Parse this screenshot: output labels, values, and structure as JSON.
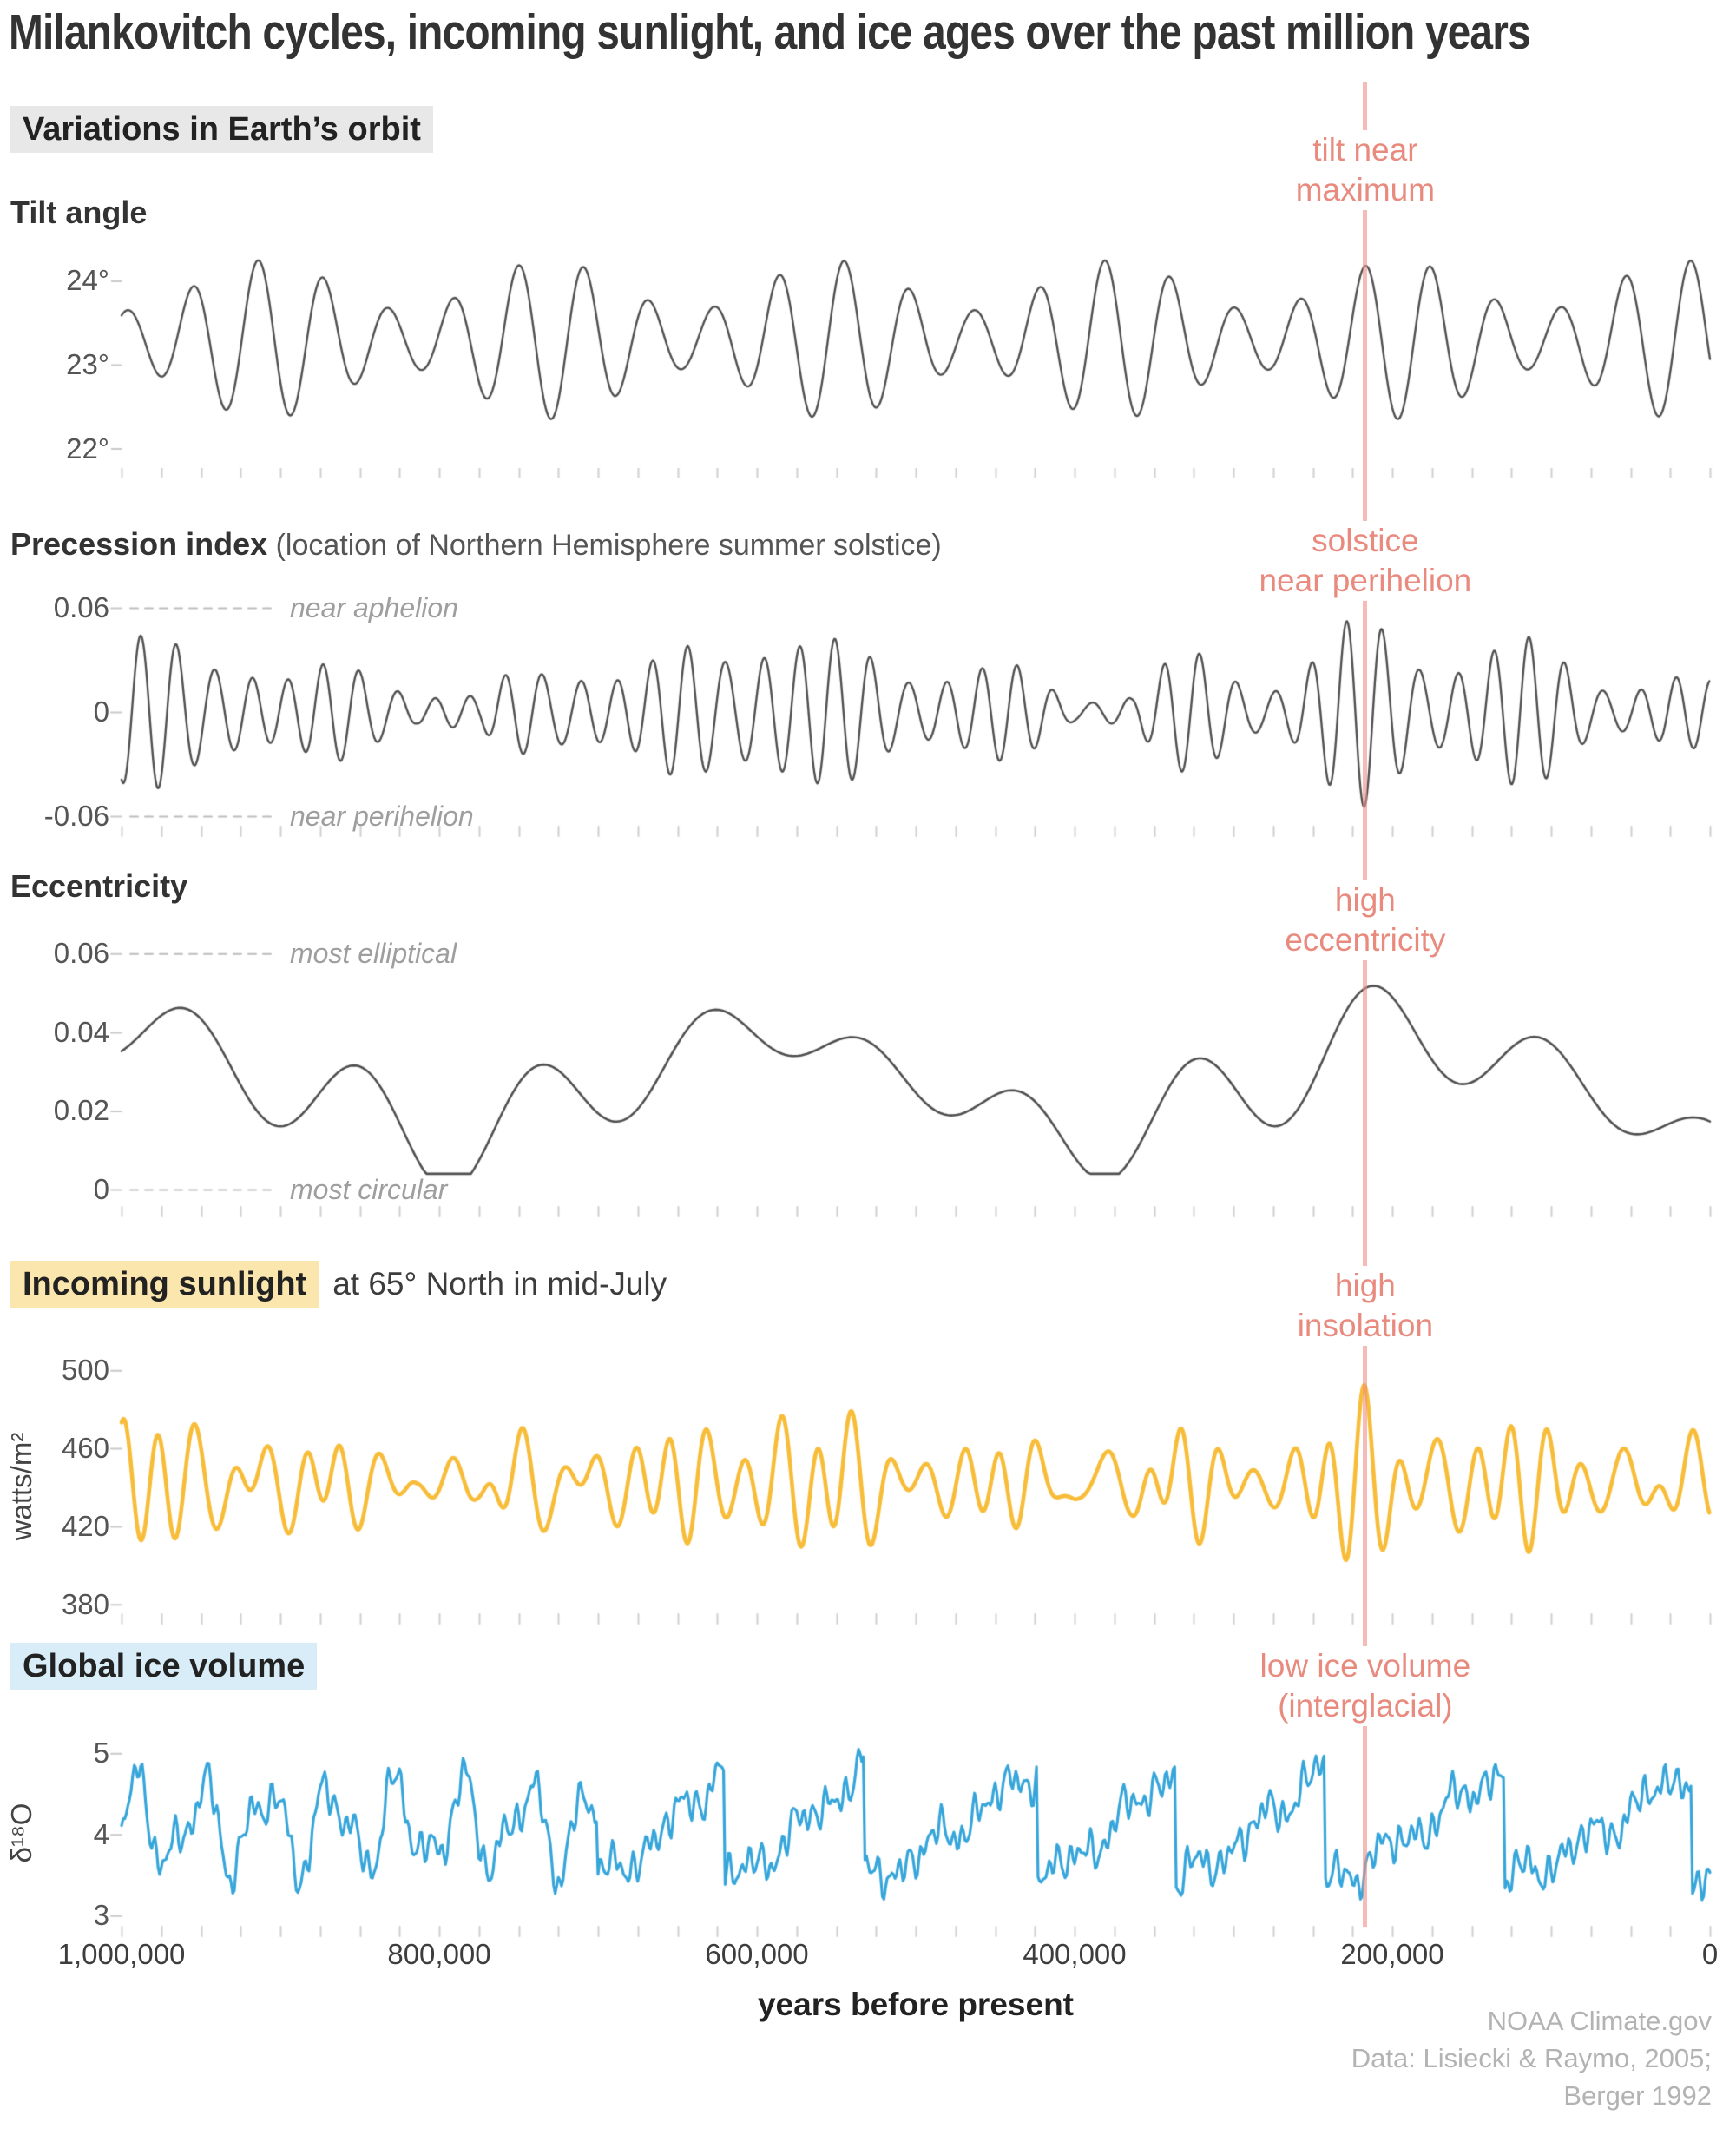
{
  "title": "Milankovitch cycles, incoming sunlight, and ice ages over the past million years",
  "sections": {
    "orbit": {
      "header": "Variations in Earth’s orbit",
      "bg": "#e8e8e8"
    },
    "sunlight": {
      "header": "Incoming sunlight",
      "suffix": "at 65° North in mid-July",
      "bg": "#fbe6ad"
    },
    "ice": {
      "header": "Global ice volume",
      "bg": "#d8edf7"
    }
  },
  "annotation_line": {
    "time_years_bp": 217000,
    "line_color": "#ef8e83",
    "text_color": "#e98a7f",
    "labels": [
      {
        "panel": "tilt",
        "lines": [
          "tilt near",
          "maximum"
        ]
      },
      {
        "panel": "precession",
        "lines": [
          "solstice",
          "near perihelion"
        ]
      },
      {
        "panel": "eccentricity",
        "lines": [
          "high",
          "eccentricity"
        ]
      },
      {
        "panel": "insolation",
        "lines": [
          "high",
          "insolation"
        ]
      },
      {
        "panel": "ice",
        "lines": [
          "low ice volume",
          "(interglacial)"
        ]
      }
    ]
  },
  "xaxis": {
    "title": "years before present",
    "minor_tick_step_years": 25000,
    "ticks": [
      {
        "t": 1000000,
        "label": "1,000,000"
      },
      {
        "t": 800000,
        "label": "800,000"
      },
      {
        "t": 600000,
        "label": "600,000"
      },
      {
        "t": 400000,
        "label": "400,000"
      },
      {
        "t": 200000,
        "label": "200,000"
      },
      {
        "t": 0,
        "label": "0"
      }
    ]
  },
  "source_lines": [
    "NOAA Climate.gov",
    "Data: Lisiecki & Raymo, 2005;",
    "Berger 1992"
  ],
  "chart_data": [
    {
      "id": "tilt",
      "type": "line",
      "title": "Tilt angle",
      "color": "#4f4f4f",
      "x_years_bp": [
        1000000,
        0
      ],
      "ylim": [
        21.85,
        24.45
      ],
      "yticks": [
        {
          "v": 24,
          "label": "24°"
        },
        {
          "v": 23,
          "label": "23°"
        },
        {
          "v": 22,
          "label": "22°"
        }
      ],
      "value_range_observed": [
        22.3,
        24.3
      ],
      "dominant_period_years": 41000,
      "generator": {
        "kind": "obliquity",
        "mean": 23.3,
        "carrier_period": 41000,
        "carrier_phase": -0.268,
        "amp_base": 0.65,
        "amp_mod": [
          178000,
          0.3,
          0.9
        ],
        "sample_step": 800
      }
    },
    {
      "id": "precession",
      "type": "line",
      "title": "Precession index",
      "title_suffix": " (location of Northern Hemisphere summer solstice)",
      "color": "#4f4f4f",
      "x_years_bp": [
        1000000,
        0
      ],
      "ylim": [
        -0.075,
        0.075
      ],
      "yticks": [
        {
          "v": 0.06,
          "label": "0.06"
        },
        {
          "v": 0,
          "label": "0"
        },
        {
          "v": -0.06,
          "label": "-0.06"
        }
      ],
      "ref_lines": [
        {
          "v": 0.06,
          "label": "near aphelion"
        },
        {
          "v": -0.06,
          "label": "near perihelion"
        }
      ],
      "value_range_observed": [
        -0.058,
        0.058
      ],
      "dominant_period_years": 23000,
      "generator": {
        "kind": "precession",
        "env_clamp": [
          0.008,
          0.06
        ],
        "env_gain": 1.05,
        "terms": [
          [
            23000,
            0.85,
            1.98
          ],
          [
            19000,
            0.25,
            1.1
          ]
        ],
        "clamp": [
          -0.062,
          0.062
        ],
        "sample_step": 600
      }
    },
    {
      "id": "eccentricity",
      "type": "line",
      "title": "Eccentricity",
      "color": "#4f4f4f",
      "x_years_bp": [
        1000000,
        0
      ],
      "ylim": [
        0,
        0.0625
      ],
      "yticks": [
        {
          "v": 0.06,
          "label": "0.06"
        },
        {
          "v": 0.04,
          "label": "0.04"
        },
        {
          "v": 0.02,
          "label": "0.02"
        },
        {
          "v": 0,
          "label": "0"
        }
      ],
      "ref_lines": [
        {
          "v": 0.06,
          "label": "most elliptical"
        },
        {
          "v": 0,
          "label": "most circular"
        }
      ],
      "value_range_observed": [
        0.005,
        0.055
      ],
      "dominant_period_years": 100000,
      "generator": {
        "kind": "eccentricity",
        "base": 0.0265,
        "terms": [
          [
            405000,
            0.013,
            -1.35
          ],
          [
            105000,
            0.009,
            1.152
          ],
          [
            131000,
            0.005,
            -1.904
          ]
        ],
        "clamp": [
          0.004,
          0.06
        ],
        "sample_step": 2000
      }
    },
    {
      "id": "insolation",
      "type": "line",
      "title": "Incoming sunlight",
      "ylabel": "watts/m²",
      "color": "#f7bc38",
      "x_years_bp": [
        1000000,
        0
      ],
      "ylim": [
        375,
        505
      ],
      "yticks": [
        {
          "v": 500,
          "label": "500"
        },
        {
          "v": 460,
          "label": "460"
        },
        {
          "v": 420,
          "label": "420"
        },
        {
          "v": 380,
          "label": "380"
        }
      ],
      "value_range_observed": [
        390,
        500
      ],
      "dominant_period_years": 23000,
      "generator": {
        "kind": "insolation",
        "base": 442,
        "prec_coeff": -700,
        "tilt_coeff": 14,
        "tilt_ref": 23.3,
        "sample_step": 600
      }
    },
    {
      "id": "ice",
      "type": "line",
      "title": "Global ice volume",
      "ylabel": "δ¹⁸O",
      "color": "#36a5da",
      "x_years_bp": [
        1000000,
        0
      ],
      "ylim": [
        2.8,
        5.25
      ],
      "yticks": [
        {
          "v": 5,
          "label": "5"
        },
        {
          "v": 4,
          "label": "4"
        },
        {
          "v": 3,
          "label": "3"
        }
      ],
      "value_range_observed": [
        3.2,
        5.0
      ],
      "dominant_period_years": 100000,
      "generator": {
        "kind": "ice",
        "terminations_years_bp": [
          700000,
          621000,
          533000,
          424000,
          337000,
          243000,
          130000,
          11000
        ],
        "interglacial_level": 3.42,
        "glacial_rise": 1.42,
        "rise_exponent": 1.25,
        "holocene": {
          "start": 11000,
          "present_value": 3.25
        },
        "pre_mpt": {
          "base": 4.1,
          "terms": [
            [
              41000,
              0.45,
              0.3
            ],
            [
              23000,
              0.18,
              1.4
            ]
          ]
        },
        "noise_terms": [
          [
            6700,
            0.12,
            0.5
          ],
          [
            10300,
            0.09,
            2.1
          ],
          [
            4300,
            0.06,
            4.0
          ],
          [
            23000,
            0.1,
            1.0
          ],
          [
            41000,
            0.12,
            2.0
          ]
        ],
        "clamp": [
          3.05,
          5.05
        ],
        "sample_step": 1000
      }
    }
  ]
}
